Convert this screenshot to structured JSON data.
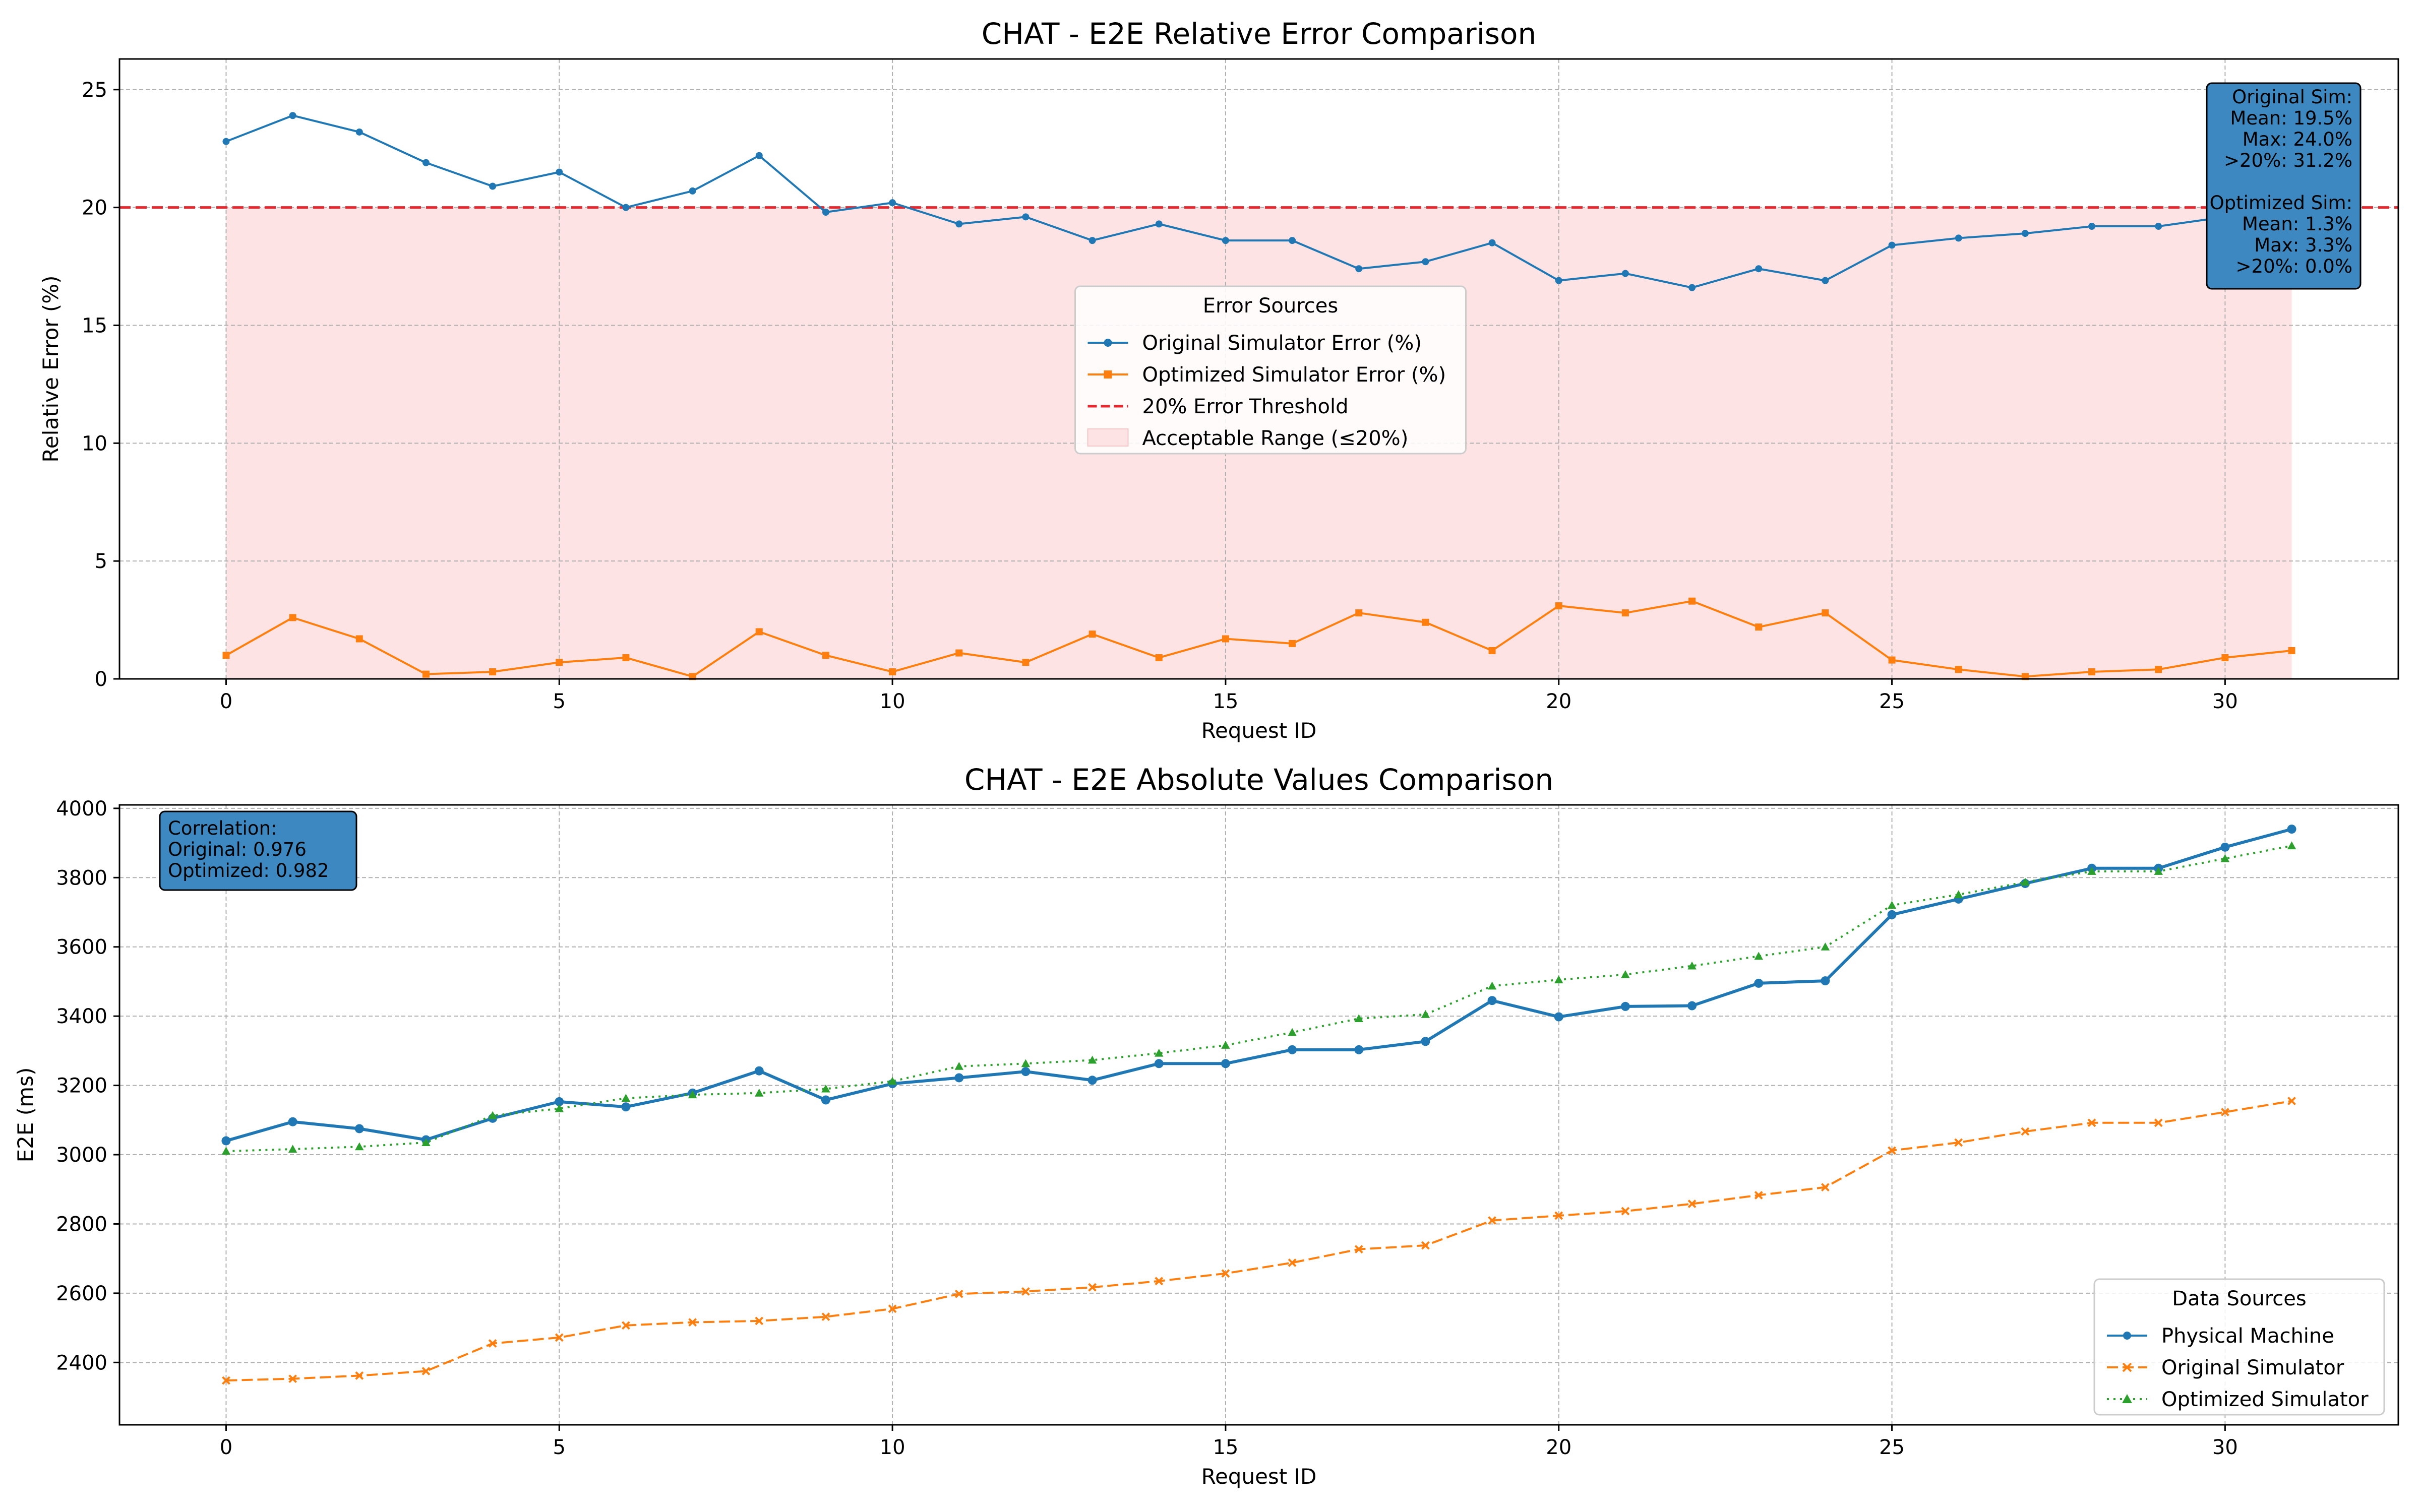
{
  "colors": {
    "physical": "#1f77b4",
    "original": "#ff7f0e",
    "optimized": "#2ca02c",
    "threshold": "#e8262d",
    "acceptable_fill": "#fde3e4",
    "stats_box": "#3d88c1",
    "grid": "#b0b0b0"
  },
  "chart_data": [
    {
      "type": "line",
      "title": "CHAT - E2E Relative Error Comparison",
      "xlabel": "Request ID",
      "ylabel": "Relative Error (%)",
      "xlim": [
        -1.6,
        32.6
      ],
      "ylim": [
        0,
        26.3
      ],
      "xticks": [
        "0",
        "5",
        "10",
        "15",
        "20",
        "25",
        "30"
      ],
      "yticks": [
        "0",
        "5",
        "10",
        "15",
        "20",
        "25"
      ],
      "grid": true,
      "x": [
        0,
        1,
        2,
        3,
        4,
        5,
        6,
        7,
        8,
        9,
        10,
        11,
        12,
        13,
        14,
        15,
        16,
        17,
        18,
        19,
        20,
        21,
        22,
        23,
        24,
        25,
        26,
        27,
        28,
        29,
        30,
        31
      ],
      "series": [
        {
          "name": "Original Simulator Error (%)",
          "marker": "circle",
          "style": "solid",
          "values": [
            22.8,
            23.9,
            23.2,
            21.9,
            20.9,
            21.5,
            20.0,
            20.7,
            22.2,
            19.8,
            20.2,
            19.3,
            19.6,
            18.6,
            19.3,
            18.6,
            18.6,
            17.4,
            17.7,
            18.5,
            16.9,
            17.2,
            16.6,
            17.4,
            16.9,
            18.4,
            18.7,
            18.9,
            19.2,
            19.2,
            19.6,
            19.8
          ]
        },
        {
          "name": "Optimized Simulator Error (%)",
          "marker": "square",
          "style": "solid",
          "values": [
            1.0,
            2.6,
            1.7,
            0.2,
            0.3,
            0.7,
            0.9,
            0.1,
            2.0,
            1.0,
            0.3,
            1.1,
            0.7,
            1.9,
            0.9,
            1.7,
            1.5,
            2.8,
            2.4,
            1.2,
            3.1,
            2.8,
            3.3,
            2.2,
            2.8,
            0.8,
            0.4,
            0.1,
            0.3,
            0.4,
            0.9,
            1.2
          ]
        }
      ],
      "threshold": {
        "name": "20% Error Threshold",
        "value": 20,
        "style": "dashed"
      },
      "band": {
        "name": "Acceptable Range (≤20%)",
        "from": 0,
        "to": 20,
        "x_from": 0,
        "x_to": 31
      },
      "legend": {
        "title": "Error Sources",
        "placement": "center"
      },
      "stats_box": {
        "placement": "top-right",
        "lines": [
          "Original Sim:",
          "Mean: 19.5%",
          "Max: 24.0%",
          ">20%: 31.2%",
          "",
          "Optimized Sim:",
          "Mean: 1.3%",
          "Max: 3.3%",
          ">20%: 0.0%"
        ]
      }
    },
    {
      "type": "line",
      "title": "CHAT - E2E Absolute Values Comparison",
      "xlabel": "Request ID",
      "ylabel": "E2E (ms)",
      "xlim": [
        -1.6,
        32.6
      ],
      "ylim": [
        2220,
        4010
      ],
      "xticks": [
        "0",
        "5",
        "10",
        "15",
        "20",
        "25",
        "30"
      ],
      "yticks": [
        "2400",
        "2600",
        "2800",
        "3000",
        "3200",
        "3400",
        "3600",
        "3800",
        "4000"
      ],
      "grid": true,
      "x": [
        0,
        1,
        2,
        3,
        4,
        5,
        6,
        7,
        8,
        9,
        10,
        11,
        12,
        13,
        14,
        15,
        16,
        17,
        18,
        19,
        20,
        21,
        22,
        23,
        24,
        25,
        26,
        27,
        28,
        29,
        30,
        31
      ],
      "series": [
        {
          "name": "Physical Machine",
          "marker": "circle",
          "style": "solid",
          "values": [
            3040,
            3095,
            3075,
            3043,
            3105,
            3153,
            3138,
            3178,
            3242,
            3158,
            3205,
            3222,
            3240,
            3215,
            3263,
            3263,
            3303,
            3303,
            3327,
            3445,
            3398,
            3428,
            3430,
            3495,
            3502,
            3693,
            3738,
            3783,
            3827,
            3827,
            3888,
            3940
          ]
        },
        {
          "name": "Original Simulator",
          "marker": "x",
          "style": "dashed",
          "values": [
            2348,
            2353,
            2362,
            2375,
            2455,
            2472,
            2507,
            2516,
            2520,
            2532,
            2555,
            2598,
            2605,
            2617,
            2635,
            2657,
            2688,
            2727,
            2738,
            2810,
            2824,
            2837,
            2858,
            2883,
            2906,
            3012,
            3035,
            3067,
            3092,
            3092,
            3123,
            3155
          ]
        },
        {
          "name": "Optimized Simulator",
          "marker": "triangle",
          "style": "dotted",
          "values": [
            3010,
            3016,
            3023,
            3035,
            3113,
            3133,
            3163,
            3173,
            3178,
            3190,
            3212,
            3255,
            3263,
            3273,
            3293,
            3316,
            3353,
            3393,
            3405,
            3487,
            3505,
            3520,
            3545,
            3573,
            3600,
            3720,
            3751,
            3787,
            3818,
            3818,
            3855,
            3892
          ]
        }
      ],
      "legend": {
        "title": "Data Sources",
        "placement": "lower-right"
      },
      "stats_box": {
        "placement": "top-left",
        "lines": [
          "Correlation:",
          "Original: 0.976",
          "Optimized: 0.982"
        ]
      }
    }
  ]
}
